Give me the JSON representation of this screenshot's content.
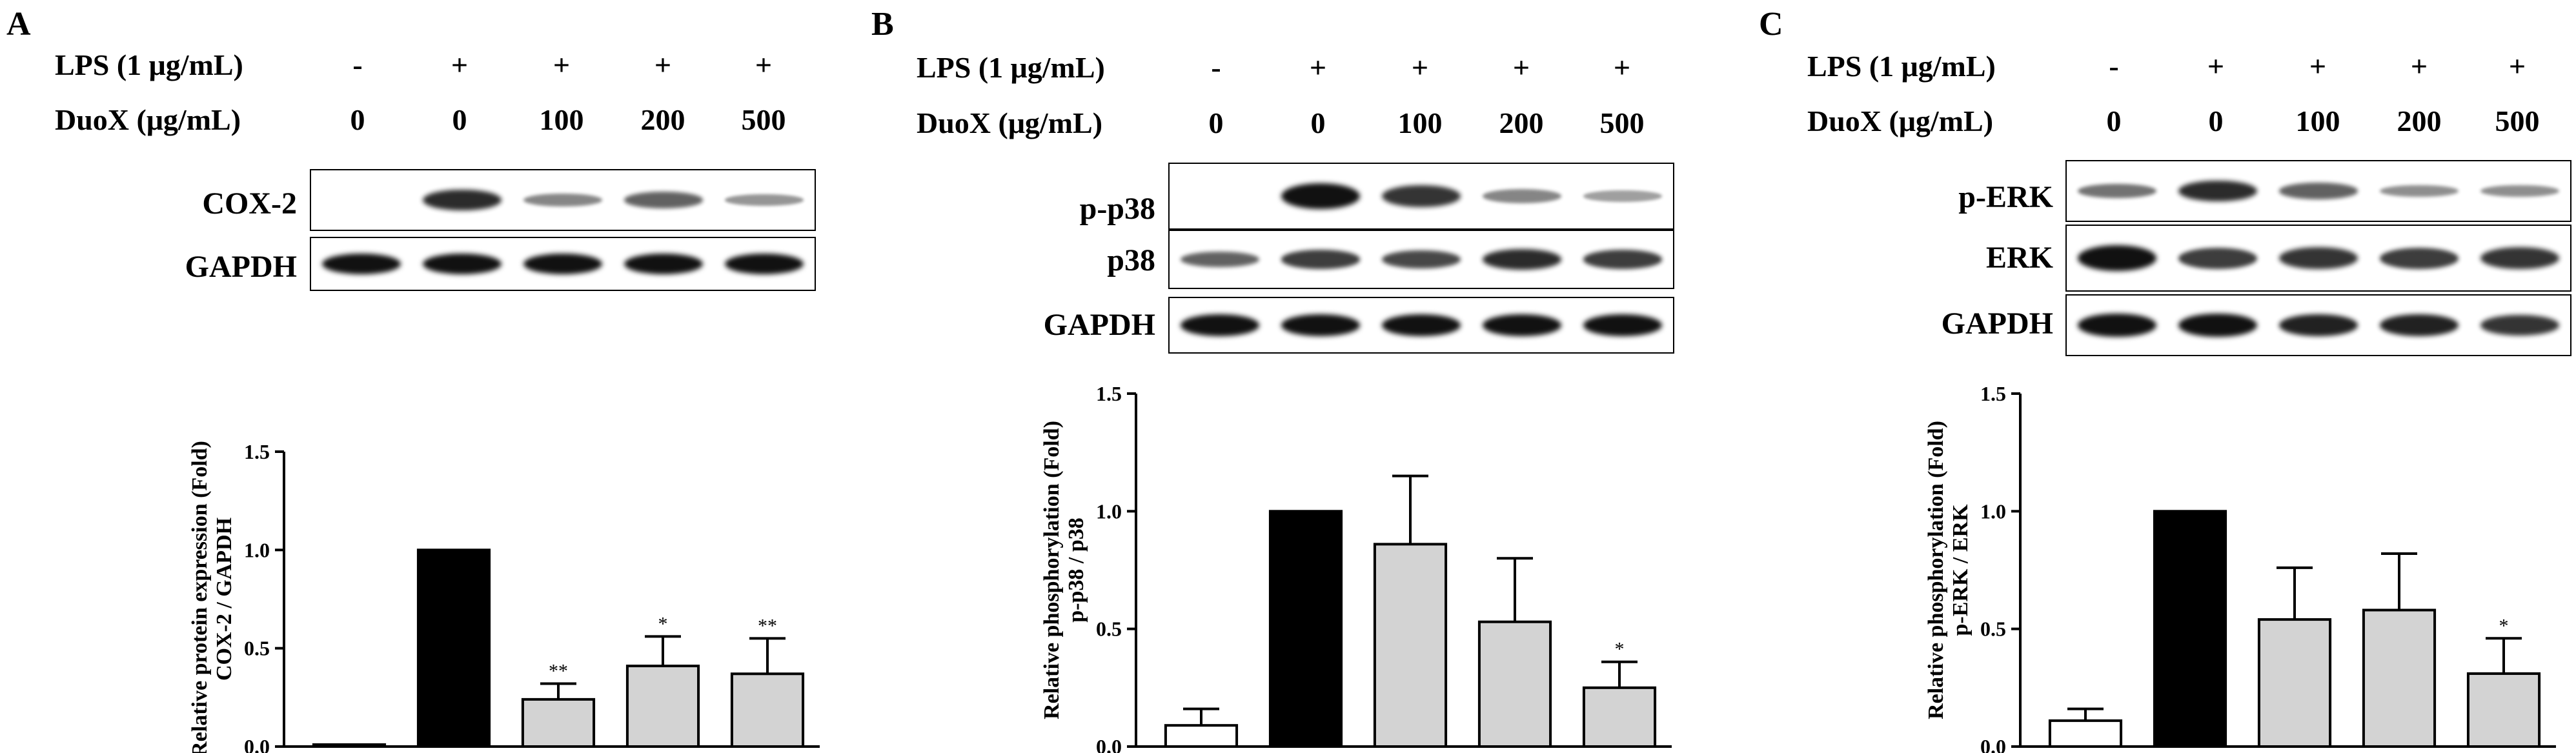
{
  "panels": [
    {
      "letter": "A",
      "treatments": {
        "lps_label": "LPS (1 μg/mL)",
        "lps": [
          "-",
          "+",
          "+",
          "+",
          "+"
        ],
        "duox_label": "DuoX (μg/mL)",
        "duox": [
          "0",
          "0",
          "100",
          "200",
          "500"
        ]
      },
      "blots": [
        {
          "label": "COX-2",
          "intensities": [
            0,
            0.85,
            0.35,
            0.55,
            0.25
          ]
        },
        {
          "label": "GAPDH",
          "intensities": [
            1,
            1,
            1,
            1,
            1
          ]
        }
      ],
      "chart_data": {
        "type": "bar",
        "categories": [
          "-/0",
          "+/0",
          "+/100",
          "+/200",
          "+/500"
        ],
        "values": [
          0.01,
          1.0,
          0.24,
          0.41,
          0.37
        ],
        "errors": [
          0.0,
          0.0,
          0.08,
          0.15,
          0.18
        ],
        "significance": [
          "",
          "###",
          "**",
          "*",
          "**"
        ],
        "bar_colors": [
          "#ffffff",
          "#000000",
          "#d3d3d3",
          "#d3d3d3",
          "#d3d3d3"
        ],
        "ylabel_line1": "Relative protein expression (Fold)",
        "ylabel_line2": "COX-2 / GAPDH",
        "ylim": [
          0,
          1.5
        ],
        "yticks": [
          "0.0",
          "0.5",
          "1.0",
          "1.5"
        ]
      }
    },
    {
      "letter": "B",
      "treatments": {
        "lps_label": "LPS (1 μg/mL)",
        "lps": [
          "-",
          "+",
          "+",
          "+",
          "+"
        ],
        "duox_label": "DuoX (μg/mL)",
        "duox": [
          "0",
          "0",
          "100",
          "200",
          "500"
        ]
      },
      "blots": [
        {
          "label": "p-p38",
          "intensities": [
            0,
            1,
            0.8,
            0.35,
            0.2
          ]
        },
        {
          "label": "p38",
          "intensities": [
            0.55,
            0.75,
            0.7,
            0.85,
            0.75
          ]
        },
        {
          "label": "GAPDH",
          "intensities": [
            1,
            1,
            1,
            1,
            1
          ]
        }
      ],
      "chart_data": {
        "type": "bar",
        "categories": [
          "-/0",
          "+/0",
          "+/100",
          "+/200",
          "+/500"
        ],
        "values": [
          0.09,
          1.0,
          0.86,
          0.53,
          0.25
        ],
        "errors": [
          0.07,
          0.0,
          0.29,
          0.27,
          0.11
        ],
        "significance": [
          "",
          "#",
          "",
          "",
          "*"
        ],
        "bar_colors": [
          "#ffffff",
          "#000000",
          "#d3d3d3",
          "#d3d3d3",
          "#d3d3d3"
        ],
        "ylabel_line1": "Relative phosphorylation (Fold)",
        "ylabel_line2": "p-p38 / p38",
        "ylim": [
          0,
          1.5
        ],
        "yticks": [
          "0.0",
          "0.5",
          "1.0",
          "1.5"
        ]
      }
    },
    {
      "letter": "C",
      "treatments": {
        "lps_label": "LPS (1 μg/mL)",
        "lps": [
          "-",
          "+",
          "+",
          "+",
          "+"
        ],
        "duox_label": "DuoX (μg/mL)",
        "duox": [
          "0",
          "0",
          "100",
          "200",
          "500"
        ]
      },
      "blots": [
        {
          "label": "p-ERK",
          "intensities": [
            0.45,
            0.85,
            0.55,
            0.3,
            0.3
          ]
        },
        {
          "label": "ERK",
          "intensities": [
            1,
            0.75,
            0.8,
            0.75,
            0.8
          ]
        },
        {
          "label": "GAPDH",
          "intensities": [
            1,
            1,
            0.9,
            0.9,
            0.8
          ]
        }
      ],
      "chart_data": {
        "type": "bar",
        "categories": [
          "-/0",
          "+/0",
          "+/100",
          "+/200",
          "+/500"
        ],
        "values": [
          0.11,
          1.0,
          0.54,
          0.58,
          0.31
        ],
        "errors": [
          0.05,
          0.0,
          0.22,
          0.24,
          0.15
        ],
        "significance": [
          "",
          "#",
          "",
          "",
          "*"
        ],
        "bar_colors": [
          "#ffffff",
          "#000000",
          "#d3d3d3",
          "#d3d3d3",
          "#d3d3d3"
        ],
        "ylabel_line1": "Relative phosphorylation (Fold)",
        "ylabel_line2": "p-ERK / ERK",
        "ylim": [
          0,
          1.5
        ],
        "yticks": [
          "0.0",
          "0.5",
          "1.0",
          "1.5"
        ]
      }
    }
  ]
}
